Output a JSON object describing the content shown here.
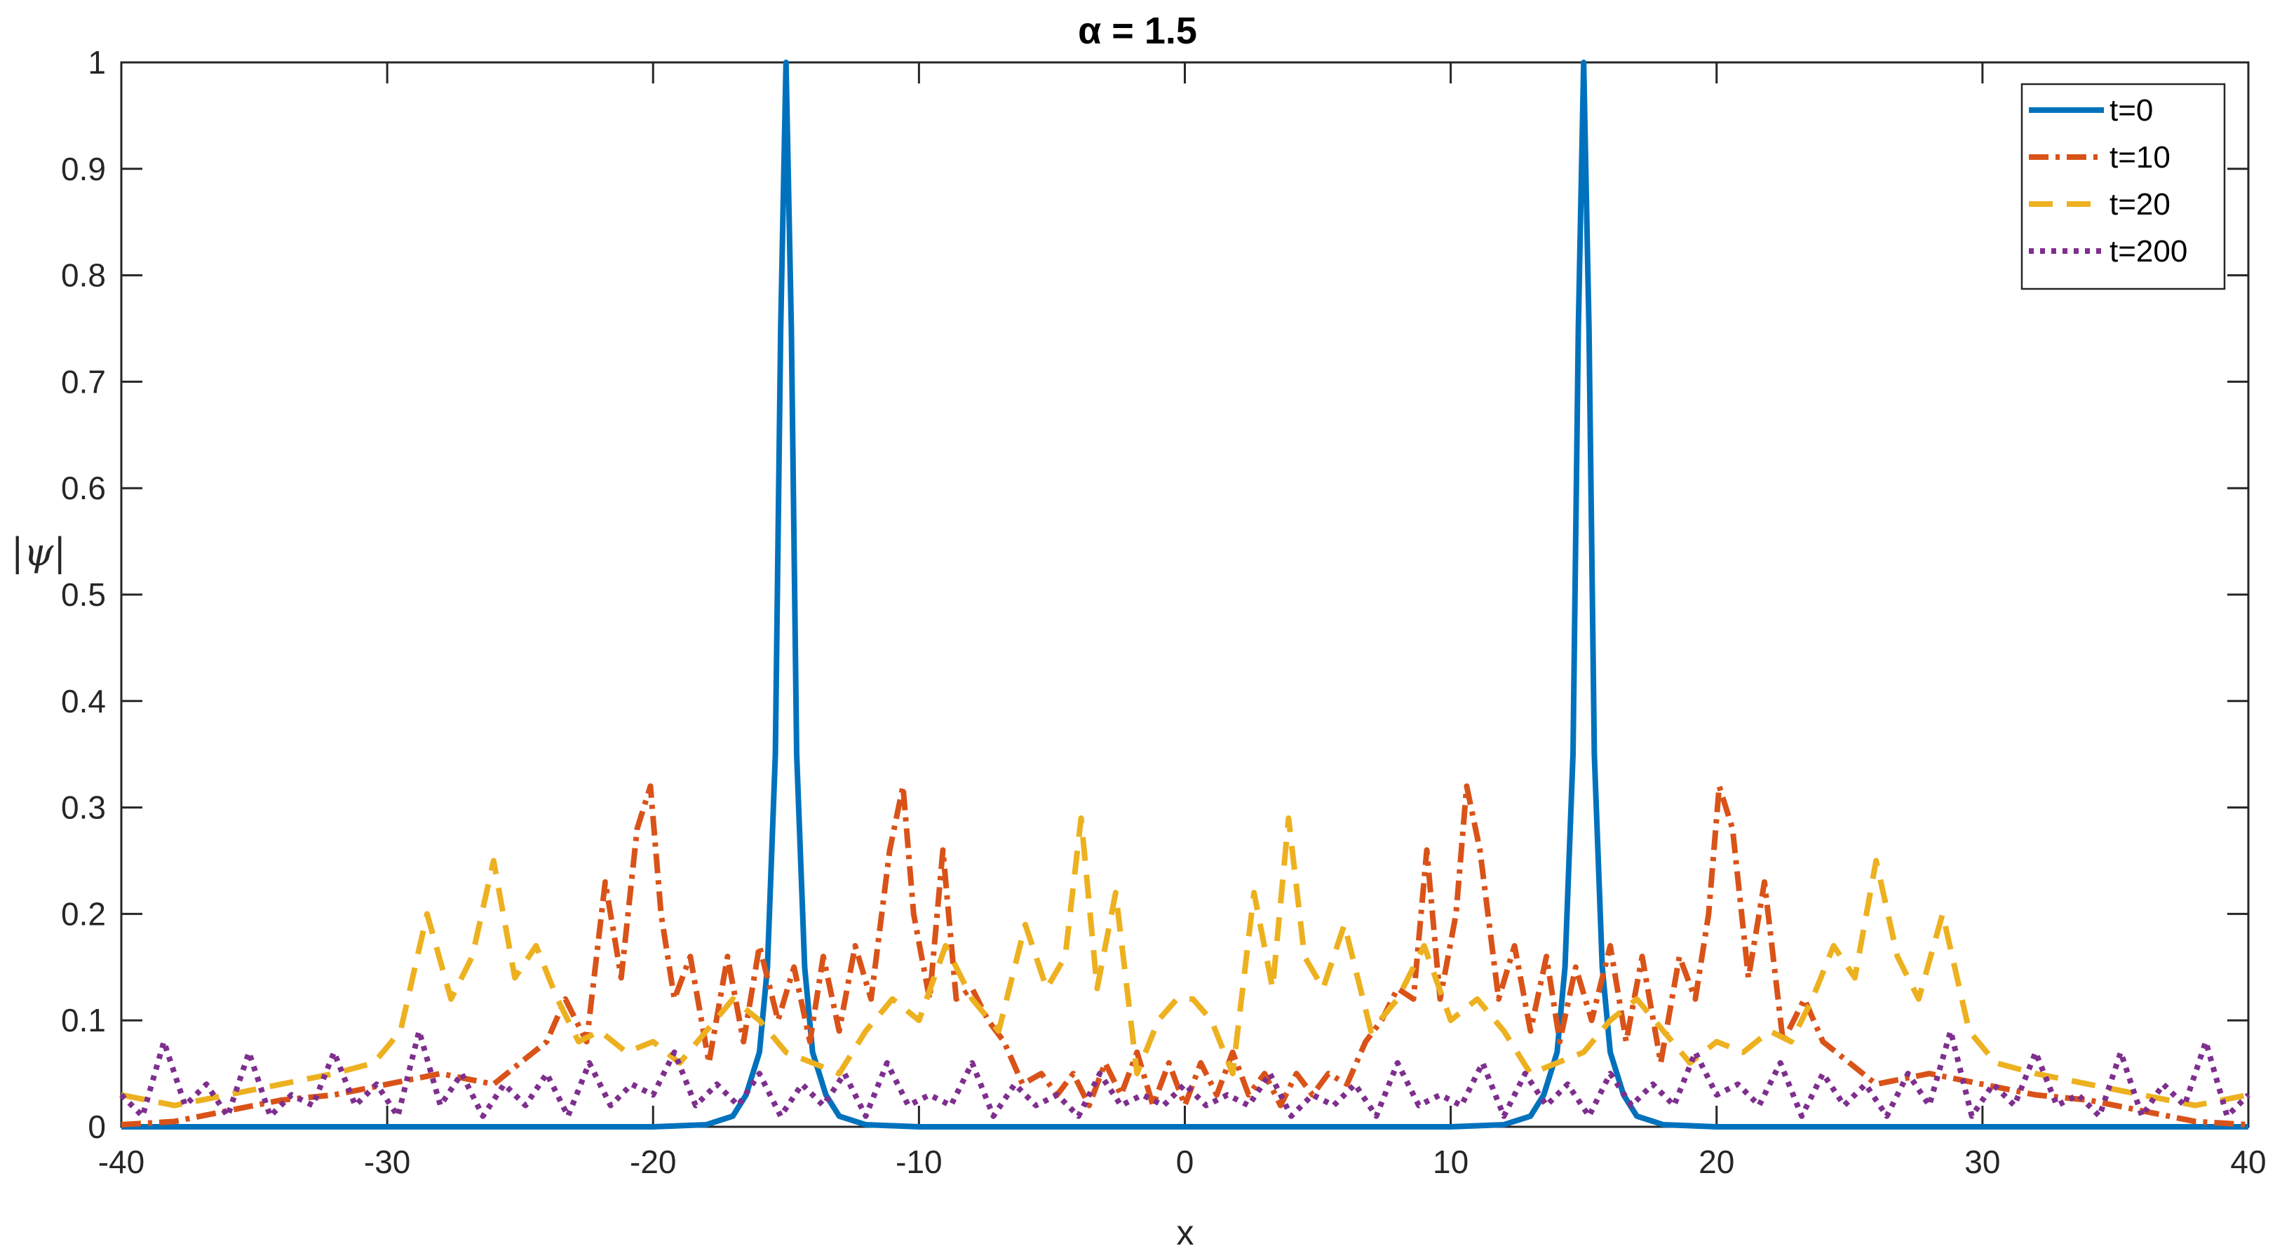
{
  "chart_data": {
    "type": "line",
    "title": "α = 1.5",
    "xlabel": "x",
    "ylabel": "|ψ|",
    "xlim": [
      -40,
      40
    ],
    "ylim": [
      0,
      1
    ],
    "xticks": [
      "-40",
      "-30",
      "-20",
      "-10",
      "0",
      "10",
      "20",
      "30",
      "40"
    ],
    "yticks": [
      "0",
      "0.1",
      "0.2",
      "0.3",
      "0.4",
      "0.5",
      "0.6",
      "0.7",
      "0.8",
      "0.9",
      "1"
    ],
    "grid": false,
    "legend_position": "top-right",
    "series": [
      {
        "name": "t=0",
        "color": "#0072BD",
        "style": "solid",
        "x": [
          -40,
          -25,
          -20,
          -18,
          -17,
          -16.5,
          -16,
          -15.7,
          -15.4,
          -15.2,
          -15,
          -14.8,
          -14.6,
          -14.3,
          -14,
          -13.5,
          -13,
          -12,
          -10,
          0,
          10,
          12,
          13,
          13.5,
          14,
          14.3,
          14.6,
          14.8,
          15,
          15.2,
          15.4,
          15.7,
          16,
          16.5,
          17,
          18,
          20,
          25,
          40
        ],
        "y": [
          0,
          0,
          0,
          0.002,
          0.01,
          0.03,
          0.07,
          0.15,
          0.35,
          0.75,
          1.0,
          0.75,
          0.35,
          0.15,
          0.07,
          0.03,
          0.01,
          0.002,
          0,
          0,
          0,
          0.002,
          0.01,
          0.03,
          0.07,
          0.15,
          0.35,
          0.75,
          1.0,
          0.75,
          0.35,
          0.15,
          0.07,
          0.03,
          0.01,
          0.002,
          0,
          0,
          0
        ]
      },
      {
        "name": "t=10",
        "color": "#D95319",
        "style": "dashdot",
        "x": [
          -40,
          -38,
          -36,
          -34,
          -32,
          -30,
          -28,
          -26,
          -25,
          -24,
          -23.3,
          -22.5,
          -21.8,
          -21.2,
          -20.6,
          -20.1,
          -19.7,
          -19.2,
          -18.6,
          -17.9,
          -17.2,
          -16.6,
          -16,
          -15.3,
          -14.7,
          -14.1,
          -13.6,
          -13.0,
          -12.4,
          -11.8,
          -11.1,
          -10.6,
          -10.2,
          -9.6,
          -9.1,
          -8.6,
          -8.0,
          -7.4,
          -6.8,
          -6.1,
          -5.4,
          -4.8,
          -4.2,
          -3.6,
          -3.0,
          -2.4,
          -1.8,
          -1.2,
          -0.6,
          0,
          0.6,
          1.2,
          1.8,
          2.4,
          3.0,
          3.6,
          4.2,
          4.8,
          5.4,
          6.1,
          6.8,
          7.4,
          8.0,
          8.6,
          9.1,
          9.6,
          10.2,
          10.6,
          11.1,
          11.8,
          12.4,
          13.0,
          13.6,
          14.1,
          14.7,
          15.3,
          16,
          16.6,
          17.2,
          17.9,
          18.6,
          19.2,
          19.7,
          20.1,
          20.6,
          21.2,
          21.8,
          22.5,
          23.3,
          24,
          25,
          26,
          28,
          30,
          32,
          34,
          36,
          38,
          40
        ],
        "y": [
          0.002,
          0.005,
          0.015,
          0.025,
          0.03,
          0.04,
          0.05,
          0.04,
          0.06,
          0.08,
          0.12,
          0.08,
          0.23,
          0.14,
          0.28,
          0.32,
          0.2,
          0.12,
          0.16,
          0.06,
          0.16,
          0.08,
          0.17,
          0.1,
          0.15,
          0.08,
          0.16,
          0.09,
          0.17,
          0.12,
          0.26,
          0.32,
          0.2,
          0.12,
          0.26,
          0.12,
          0.13,
          0.1,
          0.08,
          0.04,
          0.05,
          0.03,
          0.05,
          0.02,
          0.06,
          0.03,
          0.07,
          0.02,
          0.06,
          0.02,
          0.06,
          0.03,
          0.07,
          0.03,
          0.05,
          0.02,
          0.05,
          0.03,
          0.05,
          0.04,
          0.08,
          0.1,
          0.13,
          0.12,
          0.26,
          0.12,
          0.2,
          0.32,
          0.26,
          0.12,
          0.17,
          0.09,
          0.16,
          0.08,
          0.15,
          0.1,
          0.17,
          0.08,
          0.16,
          0.06,
          0.16,
          0.12,
          0.2,
          0.32,
          0.28,
          0.14,
          0.23,
          0.08,
          0.12,
          0.08,
          0.06,
          0.04,
          0.05,
          0.04,
          0.03,
          0.025,
          0.015,
          0.005,
          0.002
        ]
      },
      {
        "name": "t=20",
        "color": "#EDB120",
        "style": "dashed",
        "x": [
          -40,
          -38,
          -36,
          -34,
          -32,
          -30.5,
          -29.5,
          -28.5,
          -27.6,
          -26.8,
          -26.0,
          -25.2,
          -24.4,
          -23.6,
          -22.8,
          -22.0,
          -21.0,
          -20.0,
          -19.0,
          -18.0,
          -17.0,
          -16.0,
          -15.0,
          -14.0,
          -13.0,
          -12.0,
          -11.0,
          -10.0,
          -9.0,
          -8.0,
          -7.0,
          -6.0,
          -5.2,
          -4.5,
          -3.9,
          -3.3,
          -2.6,
          -1.8,
          -1.0,
          -0.3,
          0.3,
          1.0,
          1.8,
          2.6,
          3.3,
          3.9,
          4.5,
          5.2,
          6.0,
          7.0,
          8.0,
          9.0,
          10.0,
          11.0,
          12.0,
          13.0,
          14.0,
          15.0,
          16.0,
          17.0,
          18.0,
          19.0,
          20.0,
          21.0,
          22.0,
          22.8,
          23.6,
          24.4,
          25.2,
          26.0,
          26.8,
          27.6,
          28.5,
          29.5,
          30.5,
          32,
          34,
          36,
          38,
          40
        ],
        "y": [
          0.03,
          0.02,
          0.03,
          0.04,
          0.05,
          0.06,
          0.09,
          0.2,
          0.12,
          0.16,
          0.25,
          0.14,
          0.17,
          0.12,
          0.08,
          0.09,
          0.07,
          0.08,
          0.06,
          0.09,
          0.12,
          0.1,
          0.07,
          0.06,
          0.05,
          0.09,
          0.12,
          0.1,
          0.17,
          0.12,
          0.09,
          0.19,
          0.13,
          0.16,
          0.29,
          0.13,
          0.22,
          0.05,
          0.1,
          0.12,
          0.12,
          0.1,
          0.05,
          0.22,
          0.13,
          0.29,
          0.16,
          0.13,
          0.19,
          0.09,
          0.12,
          0.17,
          0.1,
          0.12,
          0.09,
          0.05,
          0.06,
          0.07,
          0.1,
          0.12,
          0.09,
          0.06,
          0.08,
          0.07,
          0.09,
          0.08,
          0.12,
          0.17,
          0.14,
          0.25,
          0.16,
          0.12,
          0.2,
          0.09,
          0.06,
          0.05,
          0.04,
          0.03,
          0.02,
          0.03
        ]
      },
      {
        "name": "t=200",
        "color": "#7E2F8E",
        "style": "dotted",
        "x": [
          -40,
          -39.2,
          -38.4,
          -37.6,
          -36.8,
          -36.0,
          -35.2,
          -34.4,
          -33.6,
          -32.8,
          -32.0,
          -31.2,
          -30.4,
          -29.6,
          -28.8,
          -28.0,
          -27.2,
          -26.4,
          -25.6,
          -24.8,
          -24.0,
          -23.2,
          -22.4,
          -21.6,
          -20.8,
          -20.0,
          -19.2,
          -18.4,
          -17.6,
          -16.8,
          -16.0,
          -15.2,
          -14.4,
          -13.6,
          -12.8,
          -12.0,
          -11.2,
          -10.4,
          -9.6,
          -8.8,
          -8.0,
          -7.2,
          -6.4,
          -5.6,
          -4.8,
          -4.0,
          -3.2,
          -2.4,
          -1.6,
          -0.8,
          0,
          0.8,
          1.6,
          2.4,
          3.2,
          4.0,
          4.8,
          5.6,
          6.4,
          7.2,
          8.0,
          8.8,
          9.6,
          10.4,
          11.2,
          12.0,
          12.8,
          13.6,
          14.4,
          15.2,
          16.0,
          16.8,
          17.6,
          18.4,
          19.2,
          20.0,
          20.8,
          21.6,
          22.4,
          23.2,
          24.0,
          24.8,
          25.6,
          26.4,
          27.2,
          28.0,
          28.8,
          29.6,
          30.4,
          31.2,
          32.0,
          32.8,
          33.6,
          34.4,
          35.2,
          36.0,
          36.8,
          37.6,
          38.4,
          39.2,
          40
        ],
        "y": [
          0.03,
          0.01,
          0.08,
          0.02,
          0.04,
          0.01,
          0.07,
          0.01,
          0.03,
          0.02,
          0.07,
          0.02,
          0.04,
          0.01,
          0.09,
          0.02,
          0.05,
          0.01,
          0.04,
          0.02,
          0.05,
          0.01,
          0.06,
          0.02,
          0.04,
          0.03,
          0.07,
          0.02,
          0.04,
          0.02,
          0.05,
          0.01,
          0.04,
          0.02,
          0.05,
          0.01,
          0.06,
          0.02,
          0.03,
          0.02,
          0.06,
          0.01,
          0.04,
          0.02,
          0.03,
          0.01,
          0.05,
          0.02,
          0.03,
          0.02,
          0.04,
          0.02,
          0.03,
          0.02,
          0.05,
          0.01,
          0.03,
          0.02,
          0.04,
          0.01,
          0.06,
          0.02,
          0.03,
          0.02,
          0.06,
          0.01,
          0.05,
          0.02,
          0.04,
          0.01,
          0.05,
          0.02,
          0.04,
          0.02,
          0.07,
          0.03,
          0.04,
          0.02,
          0.06,
          0.01,
          0.05,
          0.02,
          0.04,
          0.01,
          0.05,
          0.02,
          0.09,
          0.01,
          0.04,
          0.02,
          0.07,
          0.02,
          0.03,
          0.01,
          0.07,
          0.01,
          0.04,
          0.02,
          0.08,
          0.01,
          0.03
        ]
      }
    ]
  }
}
